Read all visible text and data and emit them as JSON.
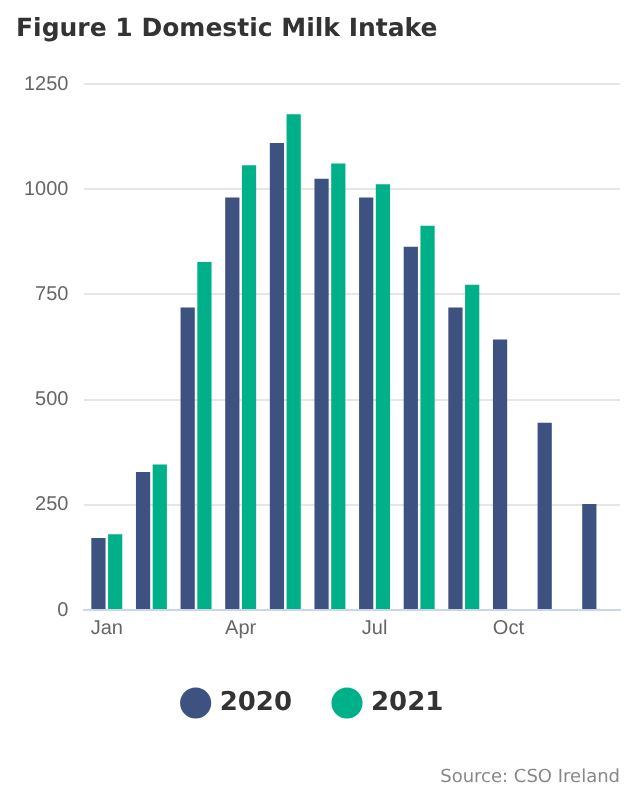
{
  "chart_data": {
    "type": "bar",
    "title": "Figure 1 Domestic Milk Intake",
    "categories": [
      "Jan",
      null,
      null,
      "Apr",
      null,
      null,
      "Jul",
      null,
      null,
      "Oct",
      null,
      null
    ],
    "series": [
      {
        "name": "2020",
        "color": "#3d5280",
        "values": [
          171,
          328,
          719,
          980,
          1110,
          1025,
          980,
          863,
          719,
          643,
          445,
          252
        ]
      },
      {
        "name": "2021",
        "color": "#00b088",
        "values": [
          180,
          346,
          827,
          1057,
          1178,
          1061,
          1012,
          913,
          773,
          null,
          null,
          null
        ]
      }
    ],
    "ylim": [
      0,
      1250
    ],
    "yticks": [
      0,
      250,
      500,
      750,
      1000,
      1250
    ],
    "grid": "y",
    "legend": "bottom",
    "annotations": [
      "Source: CSO Ireland"
    ]
  }
}
